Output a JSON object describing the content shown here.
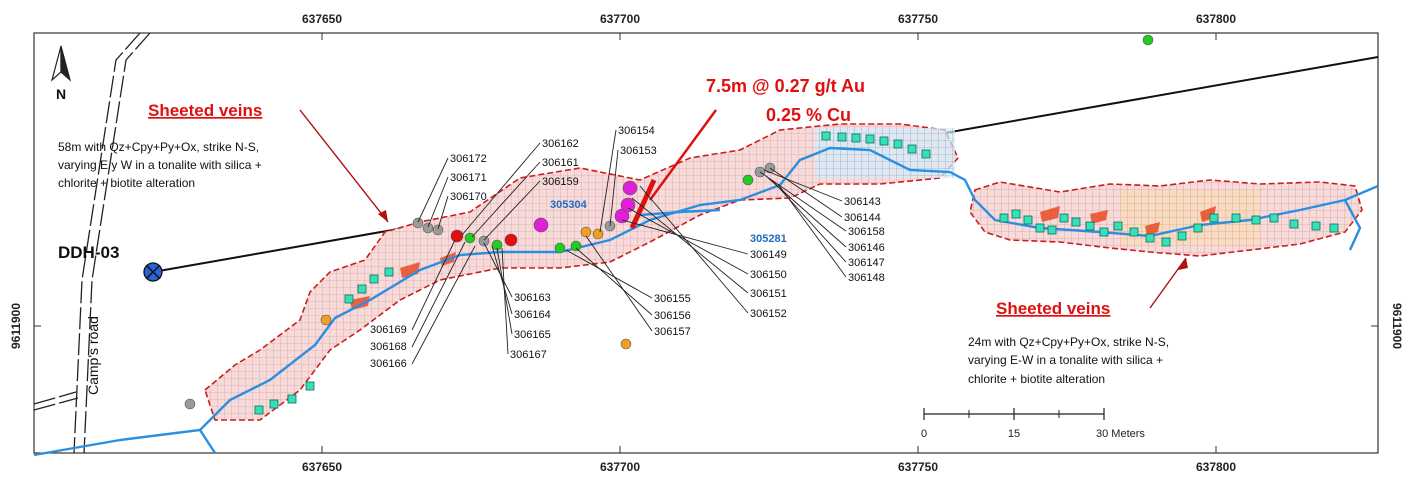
{
  "map": {
    "top_coords": [
      "637650",
      "637700",
      "637750",
      "637800"
    ],
    "bottom_coords": [
      "637650",
      "637700",
      "637750",
      "637800"
    ],
    "left_coord": "9611900",
    "right_coord": "9611900",
    "north_label": "N",
    "road_label": "Camp's road",
    "hole_label": "DDH-03",
    "result_line1": "7.5m @ 0.27 g/t Au",
    "result_line2": "0.25 % Cu",
    "sheeted_left": "Sheeted veins",
    "sheeted_right": "Sheeted veins",
    "desc_left": [
      "58m  with  Qz+Cpy+Py+Ox,  strike  N-S,",
      "varying E y W in a tonalite with silica +",
      "chlorite + biotite alteration"
    ],
    "desc_right": [
      "24m with Qz+Cpy+Py+Ox, strike N-S,",
      "varying E-W in a tonalite with silica +",
      "chlorite + biotite       alteration"
    ],
    "scale": {
      "ticks": [
        "0",
        "15",
        "30 Meters"
      ]
    },
    "blue_labels": [
      "305304",
      "305281"
    ],
    "samples_upper_left": [
      "306172",
      "306171",
      "306170"
    ],
    "samples_upper_mid": [
      "306162",
      "306161",
      "306159"
    ],
    "samples_upper_right": [
      "306154",
      "306153"
    ],
    "samples_lower_left": [
      "306169",
      "306168",
      "306166"
    ],
    "samples_lower_mid": [
      "306163",
      "306164",
      "306165",
      "306167"
    ],
    "samples_lower_center": [
      "306155",
      "306156",
      "306157"
    ],
    "samples_right_col1": [
      "306149",
      "306150",
      "306151",
      "306152"
    ],
    "samples_right_col2": [
      "306143",
      "306144",
      "306158",
      "306146",
      "306147",
      "306148"
    ],
    "colors": {
      "vein_outline": "#cc1a1a",
      "vein_fill": "#f4cfcf",
      "stream": "#2b8fe0",
      "highlight_red": "#e01010",
      "cyan_square": "#38e0b8",
      "sample_green": "#22cc22",
      "sample_gray": "#9a9a9a",
      "sample_red": "#e01010",
      "sample_magenta": "#e020d8",
      "sample_orange": "#f0a020"
    }
  }
}
